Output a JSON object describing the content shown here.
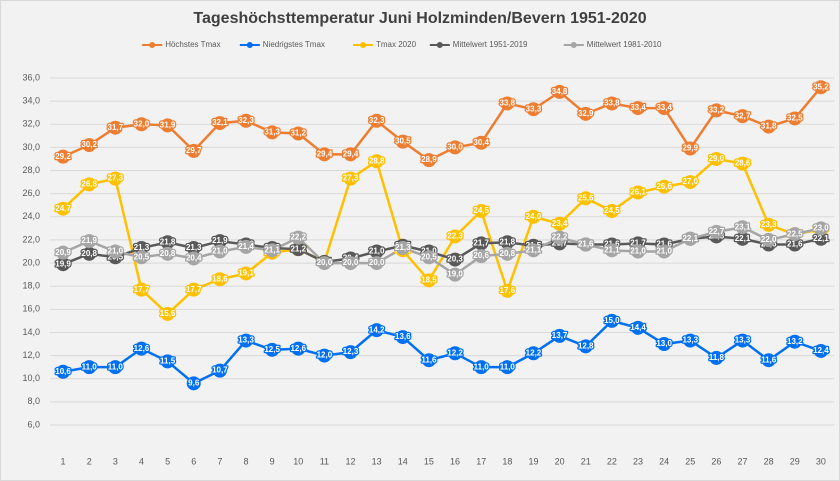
{
  "chart_data": {
    "type": "line",
    "title": "Tageshöchsttemperatur Juni Holzminden/Bevern 1951-2020",
    "categories": [
      "1",
      "2",
      "3",
      "4",
      "5",
      "6",
      "7",
      "8",
      "9",
      "10",
      "11",
      "12",
      "13",
      "14",
      "15",
      "16",
      "17",
      "18",
      "19",
      "20",
      "21",
      "22",
      "23",
      "24",
      "25",
      "26",
      "27",
      "28",
      "29",
      "30"
    ],
    "ylim": [
      6,
      36
    ],
    "yticks": [
      {
        "value": 6,
        "label": "6,0"
      },
      {
        "value": 8,
        "label": "8,0"
      },
      {
        "value": 10,
        "label": "10,0"
      },
      {
        "value": 12,
        "label": "12,0"
      },
      {
        "value": 14,
        "label": "14,0"
      },
      {
        "value": 16,
        "label": "16,0"
      },
      {
        "value": 18,
        "label": "18,0"
      },
      {
        "value": 20,
        "label": "20,0"
      },
      {
        "value": 22,
        "label": "22,0"
      },
      {
        "value": 24,
        "label": "24,0"
      },
      {
        "value": 26,
        "label": "26,0"
      },
      {
        "value": 28,
        "label": "28,0"
      },
      {
        "value": 30,
        "label": "30,0"
      },
      {
        "value": 32,
        "label": "32,0"
      },
      {
        "value": 34,
        "label": "34,0"
      },
      {
        "value": 36,
        "label": "36,0"
      }
    ],
    "grid": true,
    "legend": "top",
    "series": [
      {
        "name": "Höchstes Tmax",
        "color": "#ed7d31",
        "values": [
          29.2,
          30.2,
          31.7,
          32.0,
          31.9,
          29.7,
          32.1,
          32.3,
          31.3,
          31.2,
          29.4,
          29.4,
          32.3,
          30.5,
          28.9,
          30.0,
          30.4,
          33.8,
          33.3,
          34.8,
          32.9,
          33.8,
          33.4,
          33.4,
          29.9,
          33.2,
          32.7,
          31.8,
          32.5,
          35.2
        ],
        "value_labels": [
          "29,2",
          "30,2",
          "31,7",
          "32,0",
          "31,9",
          "29,7",
          "32,1",
          "32,3",
          "31,3",
          "31,2",
          "29,4",
          "29,4",
          "32,3",
          "30,5",
          "28,9",
          "30,0",
          "30,4",
          "33,8",
          "33,3",
          "34,8",
          "32,9",
          "33,8",
          "33,4",
          "33,4",
          "29,9",
          "33,2",
          "32,7",
          "31,8",
          "32,5",
          "35,2"
        ]
      },
      {
        "name": "Niedrigstes Tmax",
        "color": "#0070f0",
        "values": [
          10.6,
          11.0,
          11.0,
          12.6,
          11.5,
          9.6,
          10.7,
          13.3,
          12.5,
          12.6,
          12.0,
          12.3,
          14.2,
          13.6,
          11.6,
          12.2,
          11.0,
          11.0,
          12.2,
          13.7,
          12.8,
          15.0,
          14.4,
          13.0,
          13.3,
          11.8,
          13.3,
          11.6,
          13.2,
          12.4
        ],
        "value_labels": [
          "10,6",
          "11,0",
          "11,0",
          "12,6",
          "11,5",
          "9,6",
          "10,7",
          "13,3",
          "12,5",
          "12,6",
          "12,0",
          "12,3",
          "14,2",
          "13,6",
          "11,6",
          "12,2",
          "11,0",
          "11,0",
          "12,2",
          "13,7",
          "12,8",
          "15,0",
          "14,4",
          "13,0",
          "13,3",
          "11,8",
          "13,3",
          "11,6",
          "13,2",
          "12,4"
        ]
      },
      {
        "name": "Tmax 2020",
        "color": "#ffc000",
        "values": [
          24.7,
          26.8,
          27.3,
          17.7,
          15.6,
          17.7,
          18.6,
          19.1,
          20.9,
          21.2,
          20.1,
          27.3,
          28.8,
          21.1,
          18.5,
          22.3,
          24.5,
          17.6,
          24.0,
          23.4,
          25.6,
          24.5,
          26.1,
          26.6,
          27.0,
          29.0,
          28.6,
          23.3,
          22.5,
          22.9
        ],
        "value_labels": [
          "24,7",
          "26,8",
          "27,3",
          "17,7",
          "15,6",
          "17,7",
          "18,6",
          "19,1",
          "20,9",
          "21,2",
          "20,1",
          "27,3",
          "28,8",
          "21,1",
          "18,5",
          "22,3",
          "24,5",
          "17,6",
          "24,0",
          "23,4",
          "25,6",
          "24,5",
          "26,1",
          "26,6",
          "27,0",
          "29,0",
          "28,6",
          "23,3",
          "22,5",
          "22,9"
        ]
      },
      {
        "name": "Mittelwert 1951-2019",
        "color": "#595959",
        "values": [
          19.9,
          20.8,
          20.5,
          21.3,
          21.8,
          21.3,
          21.9,
          21.6,
          21.3,
          21.2,
          20.1,
          20.4,
          21.0,
          21.5,
          21.0,
          20.3,
          21.7,
          21.8,
          21.5,
          21.7,
          21.6,
          21.6,
          21.7,
          21.6,
          22.1,
          22.3,
          22.1,
          21.6,
          21.6,
          22.1
        ],
        "value_labels": [
          "19,9",
          "20,8",
          "20,5",
          "21,3",
          "21,8",
          "21,3",
          "21,9",
          "21,6",
          "21,3",
          "21,2",
          "20,1",
          "20,4",
          "21,0",
          "21,5",
          "21,0",
          "20,3",
          "21,7",
          "21,8",
          "21,5",
          "21,7",
          "21,6",
          "21,6",
          "21,7",
          "21,6",
          "22,1",
          "22,3",
          "22,1",
          "21,6",
          "21,6",
          "22,1"
        ]
      },
      {
        "name": "Mittelwert 1981-2010",
        "color": "#a5a5a5",
        "values": [
          20.9,
          21.9,
          21.0,
          20.5,
          20.8,
          20.4,
          21.0,
          21.4,
          21.1,
          22.2,
          20.0,
          20.0,
          20.0,
          21.3,
          20.5,
          19.0,
          20.6,
          20.8,
          21.1,
          22.2,
          21.6,
          21.1,
          21.0,
          21.0,
          22.1,
          22.7,
          23.1,
          22.0,
          22.5,
          23.0
        ],
        "value_labels": [
          "20,9",
          "21,9",
          "21,0",
          "20,5",
          "20,8",
          "20,4",
          "21,0",
          "21,4",
          "21,1",
          "22,2",
          "20,0",
          "20,0",
          "20,0",
          "21,3",
          "20,5",
          "19,0",
          "20,6",
          "20,8",
          "21,1",
          "22,2",
          "21,6",
          "21,1",
          "21,0",
          "21,0",
          "22,1",
          "22,7",
          "23,1",
          "22,0",
          "22,5",
          "23,0"
        ]
      }
    ]
  }
}
